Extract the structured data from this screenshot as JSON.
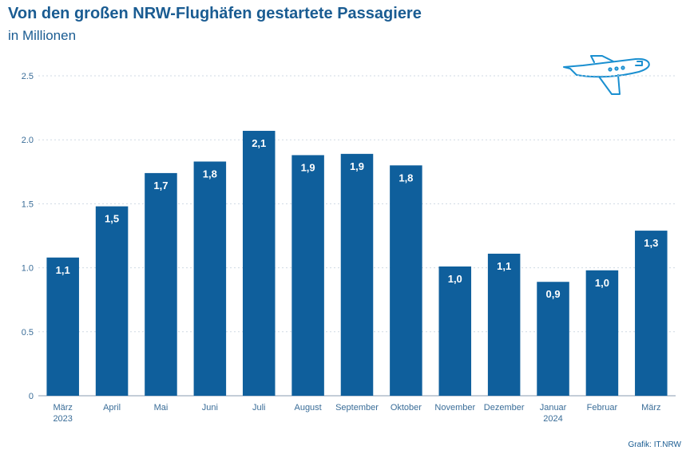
{
  "header": {
    "title": "Von den großen NRW-Flughäfen gestartete Passagiere",
    "subtitle": "in Millionen"
  },
  "footer": {
    "source": "Grafik: IT.NRW"
  },
  "icons": {
    "decoration": "airplane-icon"
  },
  "colors": {
    "bar": "#0f5f9c",
    "text": "#1a5c92",
    "grid": "#cfd9e3",
    "axis": "#8a9bb0"
  },
  "chart_data": {
    "type": "bar",
    "title": "Von den großen NRW-Flughäfen gestartete Passagiere",
    "subtitle": "in Millionen",
    "xlabel": "",
    "ylabel": "",
    "categories": [
      [
        "März",
        "2023"
      ],
      [
        "April"
      ],
      [
        "Mai"
      ],
      [
        "Juni"
      ],
      [
        "Juli"
      ],
      [
        "August"
      ],
      [
        "September"
      ],
      [
        "Oktober"
      ],
      [
        "November"
      ],
      [
        "Dezember"
      ],
      [
        "Januar",
        "2024"
      ],
      [
        "Februar"
      ],
      [
        "März"
      ]
    ],
    "values": [
      1.08,
      1.48,
      1.74,
      1.83,
      2.07,
      1.88,
      1.89,
      1.8,
      1.01,
      1.11,
      0.89,
      0.98,
      1.29
    ],
    "data_labels": [
      "1,1",
      "1,5",
      "1,7",
      "1,8",
      "2,1",
      "1,9",
      "1,9",
      "1,8",
      "1,0",
      "1,1",
      "0,9",
      "1,0",
      "1,3"
    ],
    "yticks": [
      0,
      0.5,
      1.0,
      1.5,
      2.0,
      2.5
    ],
    "ytick_labels": [
      "0",
      "0.5",
      "1.0",
      "1.5",
      "2.0",
      "2.5"
    ],
    "ylim": [
      0,
      2.5
    ],
    "grid": true,
    "legend": "none"
  }
}
